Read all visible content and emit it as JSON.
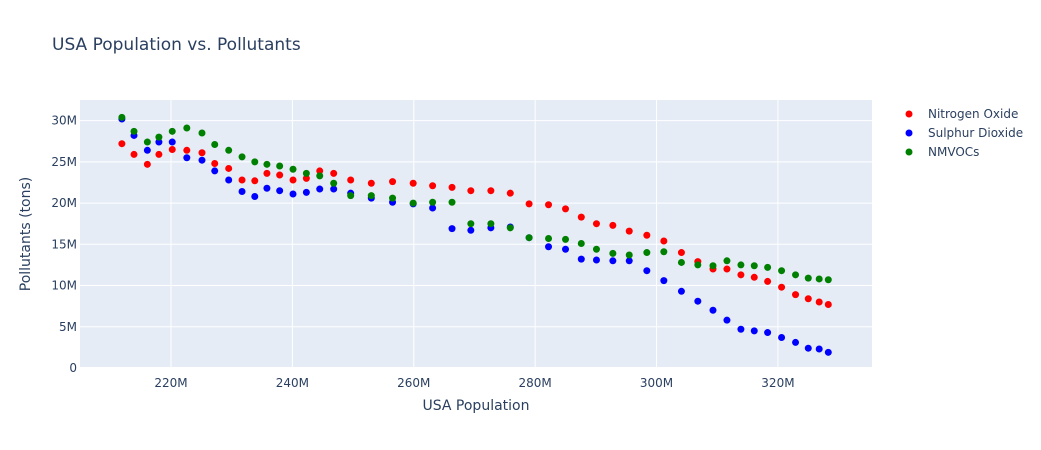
{
  "chart_data": {
    "type": "scatter",
    "title": "USA Population vs. Pollutants",
    "xlabel": "USA Population",
    "ylabel": "Pollutants (tons)",
    "xlim": [
      205000000,
      335500000
    ],
    "ylim": [
      0,
      32500000
    ],
    "x_ticks": [
      {
        "value": 220000000,
        "label": "220M"
      },
      {
        "value": 240000000,
        "label": "240M"
      },
      {
        "value": 260000000,
        "label": "260M"
      },
      {
        "value": 280000000,
        "label": "280M"
      },
      {
        "value": 300000000,
        "label": "300M"
      },
      {
        "value": 320000000,
        "label": "320M"
      }
    ],
    "y_ticks": [
      {
        "value": 0,
        "label": "0"
      },
      {
        "value": 5000000,
        "label": "5M"
      },
      {
        "value": 10000000,
        "label": "10M"
      },
      {
        "value": 15000000,
        "label": "15M"
      },
      {
        "value": 20000000,
        "label": "20M"
      },
      {
        "value": 25000000,
        "label": "25M"
      },
      {
        "value": 30000000,
        "label": "30M"
      }
    ],
    "grid": true,
    "legend_position": "top-right",
    "background_color": "#e5ecf6",
    "x": [
      211.9,
      213.9,
      216.1,
      218.0,
      220.2,
      222.6,
      225.1,
      227.2,
      229.5,
      231.7,
      233.8,
      235.8,
      237.9,
      240.1,
      242.3,
      244.5,
      246.8,
      249.6,
      253.0,
      256.5,
      259.9,
      263.1,
      266.3,
      269.4,
      272.7,
      275.9,
      279.0,
      282.2,
      285.0,
      287.6,
      290.1,
      292.8,
      295.5,
      298.4,
      301.2,
      304.1,
      306.8,
      309.3,
      311.6,
      313.9,
      316.1,
      318.3,
      320.6,
      322.9,
      325.0,
      326.8,
      328.3
    ],
    "series": [
      {
        "name": "Nitrogen Oxide",
        "color": "#ff0000",
        "values": [
          27.2,
          25.9,
          24.7,
          25.9,
          26.5,
          26.4,
          26.1,
          24.8,
          24.2,
          22.8,
          22.7,
          23.6,
          23.4,
          22.8,
          23.0,
          23.9,
          23.6,
          22.8,
          22.4,
          22.6,
          22.4,
          22.1,
          21.9,
          21.5,
          21.5,
          21.2,
          19.9,
          19.8,
          19.3,
          18.3,
          17.5,
          17.3,
          16.6,
          16.1,
          15.4,
          14.0,
          12.9,
          12.0,
          12.0,
          11.3,
          11.0,
          10.5,
          9.8,
          8.9,
          8.4,
          8.0,
          7.7
        ]
      },
      {
        "name": "Sulphur Dioxide",
        "color": "#0000ff",
        "values": [
          30.2,
          28.2,
          26.4,
          27.4,
          27.4,
          25.5,
          25.2,
          23.9,
          22.8,
          21.4,
          20.8,
          21.8,
          21.5,
          21.1,
          21.3,
          21.7,
          21.7,
          21.2,
          20.6,
          20.1,
          19.9,
          19.4,
          16.9,
          16.7,
          17.0,
          17.1,
          15.8,
          14.7,
          14.4,
          13.2,
          13.1,
          13.0,
          13.0,
          11.8,
          10.6,
          9.3,
          8.1,
          7.0,
          5.8,
          4.7,
          4.5,
          4.3,
          3.7,
          3.1,
          2.4,
          2.3,
          1.9
        ]
      },
      {
        "name": "NMVOCs",
        "color": "#008000",
        "values": [
          30.4,
          28.7,
          27.4,
          28.0,
          28.7,
          29.1,
          28.5,
          27.1,
          26.4,
          25.6,
          25.0,
          24.7,
          24.5,
          24.1,
          23.6,
          23.3,
          22.4,
          20.9,
          20.9,
          20.6,
          20.0,
          20.1,
          20.1,
          17.5,
          17.5,
          17.0,
          15.8,
          15.7,
          15.6,
          15.1,
          14.4,
          13.9,
          13.7,
          14.0,
          14.1,
          12.8,
          12.5,
          12.4,
          13.0,
          12.5,
          12.4,
          12.2,
          11.8,
          11.3,
          10.9,
          10.8,
          10.7
        ]
      }
    ],
    "units": {
      "x": "millions of people",
      "y": "millions of tons"
    }
  }
}
